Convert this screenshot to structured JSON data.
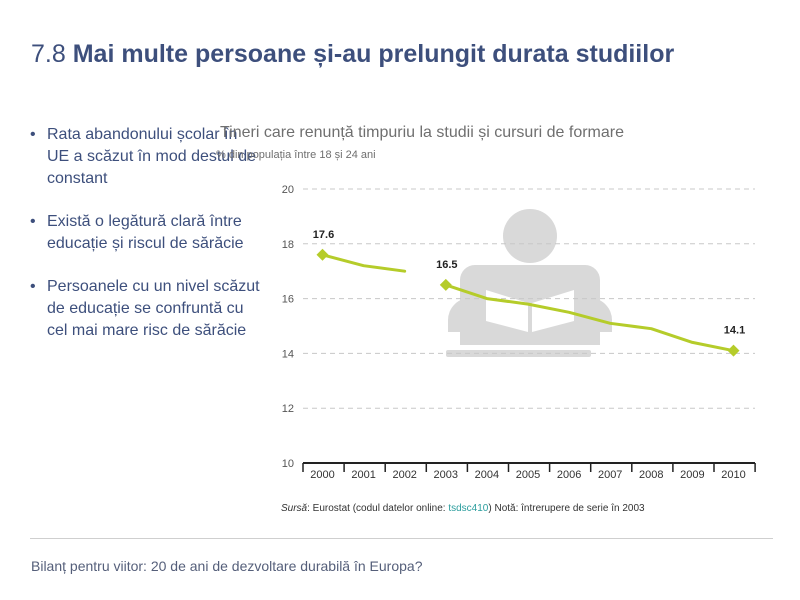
{
  "slide": {
    "number": "7.8",
    "title": "Mai multe persoane și-au prelungit durata studiilor"
  },
  "bullets": [
    "Rata abandonului școlar în UE a scăzut în mod destul de constant",
    "Există o legătură clară între educație și riscul de sărăcie",
    "Persoanele cu un nivel scăzut de educație se confruntă cu cel mai mare risc de sărăcie"
  ],
  "chart_data": {
    "type": "line",
    "title": "Tineri care renunță timpuriu la studii și cursuri de formare",
    "subtitle": "% din populația între 18 și 24 ani",
    "xlabel": "",
    "ylabel": "",
    "categories": [
      "2000",
      "2001",
      "2002",
      "2003",
      "2004",
      "2005",
      "2006",
      "2007",
      "2008",
      "2009",
      "2010"
    ],
    "series": [
      {
        "segments": [
          {
            "x": [
              "2000",
              "2001",
              "2002"
            ],
            "y": [
              17.6,
              17.2,
              17.0
            ]
          },
          {
            "x": [
              "2003",
              "2004",
              "2005",
              "2006",
              "2007",
              "2008",
              "2009",
              "2010"
            ],
            "y": [
              16.5,
              16.0,
              15.8,
              15.5,
              15.1,
              14.9,
              14.4,
              14.1
            ]
          }
        ]
      }
    ],
    "labeled_points": [
      {
        "x": "2000",
        "y": 17.6,
        "label": "17.6"
      },
      {
        "x": "2003",
        "y": 16.5,
        "label": "16.5"
      },
      {
        "x": "2010",
        "y": 14.1,
        "label": "14.1"
      }
    ],
    "yticks": [
      "20",
      "18",
      "16",
      "14",
      "12",
      "10"
    ],
    "ylim": [
      10,
      20
    ],
    "grid": true,
    "line_color": "#b5cc2a",
    "icon": "reading-person-icon"
  },
  "source": {
    "label": "Sursă",
    "text_before": ": Eurostat (codul datelor online: ",
    "code": "tsdsc410",
    "text_after": ") Notă: întrerupere de serie în 2003"
  },
  "footer": "Bilanț pentru viitor: 20 de ani de dezvoltare durabilă în Europa?"
}
